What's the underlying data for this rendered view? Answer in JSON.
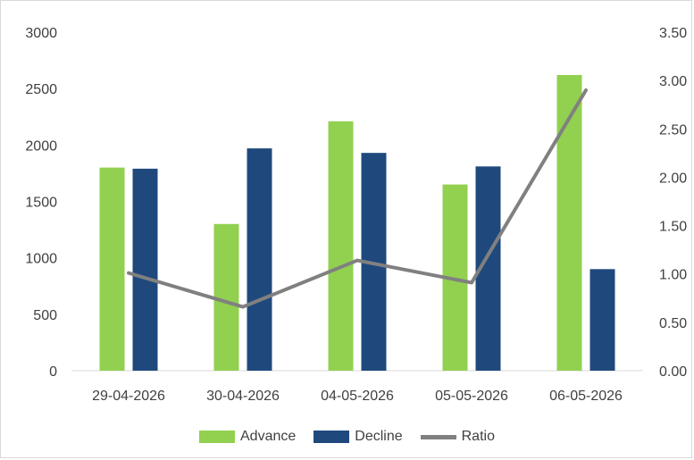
{
  "chart_data": {
    "type": "bar",
    "categories": [
      "29-04-2026",
      "30-04-2026",
      "04-05-2026",
      "05-05-2026",
      "06-05-2026"
    ],
    "series": [
      {
        "name": "Advance",
        "type": "bar",
        "axis": "left",
        "color": "#92d050",
        "values": [
          1800,
          1300,
          2210,
          1650,
          2620
        ]
      },
      {
        "name": "Decline",
        "type": "bar",
        "axis": "left",
        "color": "#1f497d",
        "values": [
          1790,
          1970,
          1930,
          1810,
          900
        ]
      },
      {
        "name": "Ratio",
        "type": "line",
        "axis": "right",
        "color": "#808080",
        "values": [
          1.01,
          0.66,
          1.14,
          0.91,
          2.9
        ]
      }
    ],
    "y_left": {
      "ylim": [
        0,
        3000
      ],
      "ticks": [
        "0",
        "500",
        "1000",
        "1500",
        "2000",
        "2500",
        "3000"
      ]
    },
    "y_right": {
      "ylim": [
        0,
        3.5
      ],
      "ticks": [
        "0.00",
        "0.50",
        "1.00",
        "1.50",
        "2.00",
        "2.50",
        "3.00",
        "3.50"
      ]
    },
    "grid": false,
    "legend_position": "bottom"
  }
}
